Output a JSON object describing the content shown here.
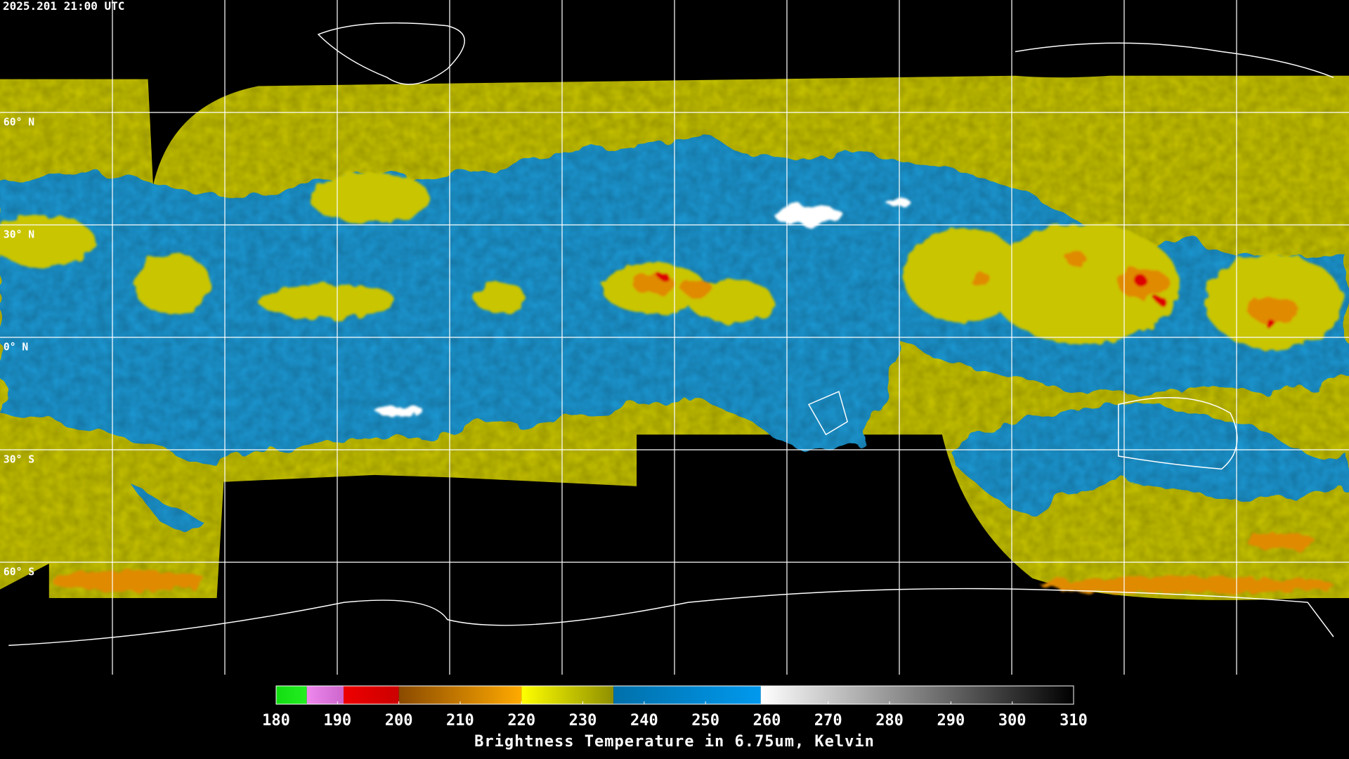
{
  "header": {
    "timestamp": "2025.201 21:00 UTC"
  },
  "map": {
    "latitudes": [
      {
        "value": 60,
        "label": "60° N"
      },
      {
        "value": 30,
        "label": "30° N"
      },
      {
        "value": 0,
        "label": "0° N"
      },
      {
        "value": -30,
        "label": "30° S"
      },
      {
        "value": -60,
        "label": "60° S"
      }
    ]
  },
  "colorbar": {
    "label": "Brightness Temperature in 6.75um, Kelvin",
    "range": [
      180,
      310
    ],
    "ticks": [
      180,
      190,
      200,
      210,
      220,
      230,
      240,
      250,
      260,
      270,
      280,
      290,
      300,
      310
    ],
    "segments": [
      {
        "from": 180,
        "to": 185,
        "colors": [
          "#11dd11",
          "#22ee22"
        ]
      },
      {
        "from": 185,
        "to": 191,
        "colors": [
          "#ee88ee",
          "#cc66cc"
        ]
      },
      {
        "from": 191,
        "to": 200,
        "colors": [
          "#ee0000",
          "#cc0000"
        ]
      },
      {
        "from": 200,
        "to": 220,
        "colors": [
          "#8a4a00",
          "#ffaa00"
        ]
      },
      {
        "from": 220,
        "to": 235,
        "colors": [
          "#ffff00",
          "#8f8f00"
        ]
      },
      {
        "from": 235,
        "to": 259,
        "colors": [
          "#0070aa",
          "#0099ee"
        ]
      },
      {
        "from": 259,
        "to": 310,
        "colors": [
          "#ffffff",
          "#000000"
        ]
      }
    ]
  }
}
